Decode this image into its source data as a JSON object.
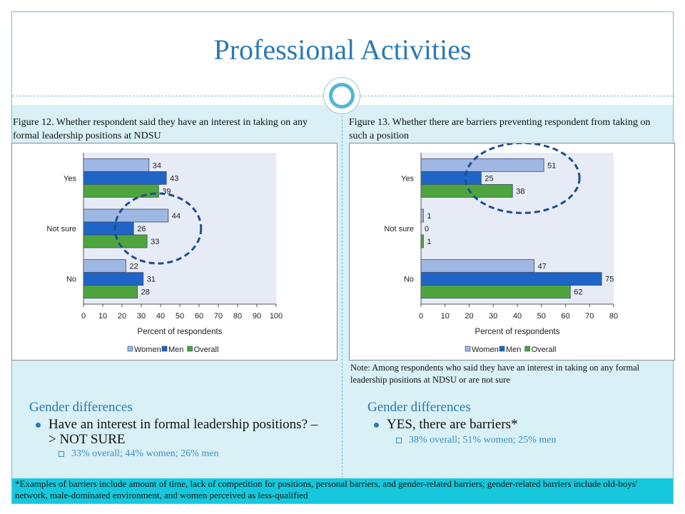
{
  "title": "Professional Activities",
  "left": {
    "caption": "Figure 12. Whether respondent said they have an interest in taking on any formal leadership positions at NDSU",
    "gd_heading": "Gender differences",
    "bullet": "Have an interest in formal leadership positions? –> NOT SURE",
    "sub": "33% overall; 44% women; 26% men"
  },
  "right": {
    "caption": "Figure 13. Whether there are barriers preventing respondent from taking on such a position",
    "note": "Note: Among respondents who said they have an interest in taking on any formal leadership positions at NDSU or are not sure",
    "gd_heading": "Gender differences",
    "bullet": "YES, there are barriers*",
    "sub": "38% overall; 51% women; 25% men"
  },
  "footnote": "*Examples of barriers include  amount of time, lack of competition for positions, personal barriers, and gender-related barriers; gender-related barriers include  old-boys' network, male-dominated environment, and  women perceived as less-qualified",
  "colors": {
    "women": "#9fb7e3",
    "men": "#1f65c8",
    "overall": "#4ea53d",
    "accent": "#2b79b4",
    "footnote_bg": "#17c8dc",
    "highlight_ellipse": "#1f4e8c"
  },
  "chart_data": [
    {
      "type": "bar",
      "orientation": "horizontal",
      "categories": [
        "Yes",
        "Not sure",
        "No"
      ],
      "series": [
        {
          "name": "Women",
          "values": [
            34,
            44,
            22
          ]
        },
        {
          "name": "Men",
          "values": [
            43,
            26,
            31
          ]
        },
        {
          "name": "Overall",
          "values": [
            39,
            33,
            28
          ]
        }
      ],
      "xlabel": "Percent  of respondents",
      "xlim": [
        0,
        100
      ],
      "xticks": [
        0,
        10,
        20,
        30,
        40,
        50,
        60,
        70,
        80,
        90,
        100
      ],
      "legend": "bottom",
      "highlight": "Not sure"
    },
    {
      "type": "bar",
      "orientation": "horizontal",
      "categories": [
        "Yes",
        "Not sure",
        "No"
      ],
      "series": [
        {
          "name": "Women",
          "values": [
            51,
            1,
            47
          ]
        },
        {
          "name": "Men",
          "values": [
            25,
            0,
            75
          ]
        },
        {
          "name": "Overall",
          "values": [
            38,
            1,
            62
          ]
        }
      ],
      "xlabel": "Percent  of respondents",
      "xlim": [
        0,
        80
      ],
      "xticks": [
        0,
        10,
        20,
        30,
        40,
        50,
        60,
        70,
        80
      ],
      "legend": "bottom",
      "highlight": "Yes"
    }
  ]
}
